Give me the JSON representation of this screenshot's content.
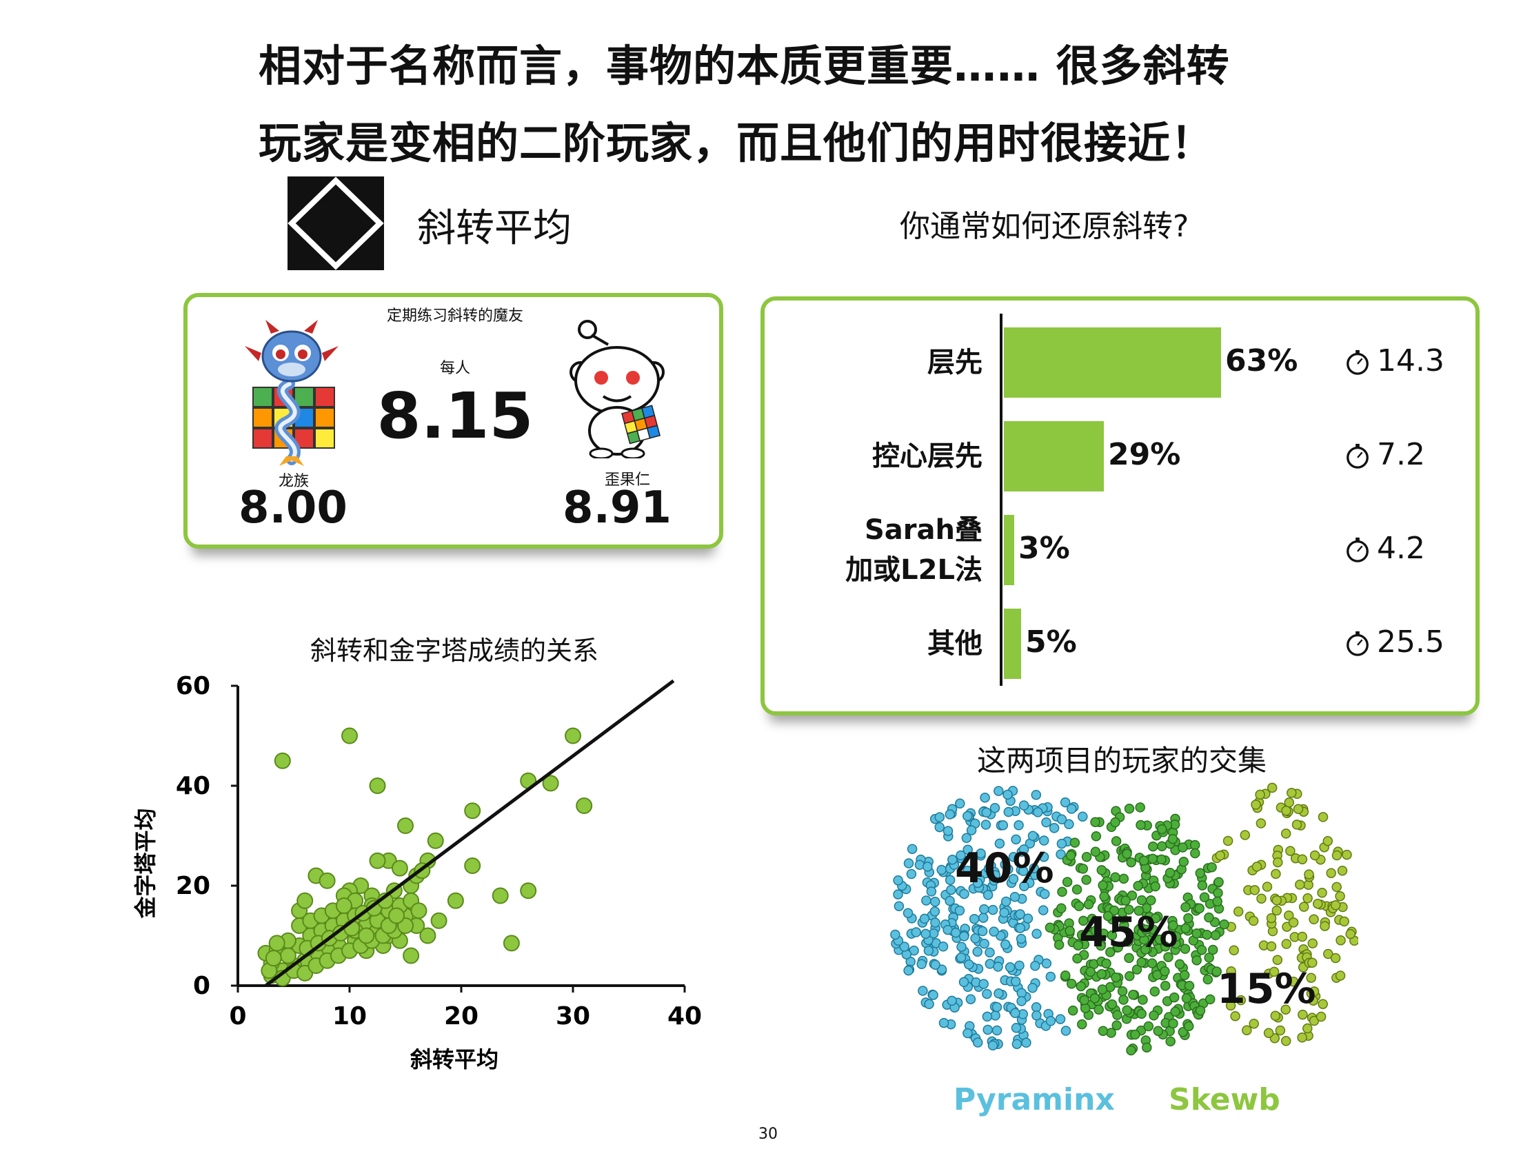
{
  "headline": {
    "line1": "相对于名称而言，事物的本质更重要…… 很多斜转",
    "line2": "玩家是变相的二阶玩家，而且他们的用时很接近！"
  },
  "skewb_title": "斜转平均",
  "survey_title": "你通常如何还原斜转?",
  "regulars": {
    "caption": "定期练习斜转的魔友",
    "overall_caption": "每人",
    "overall_value": "8.15",
    "left_caption": "龙族",
    "left_value": "8.00",
    "right_caption": "歪果仁",
    "right_value": "8.91"
  },
  "methods": [
    {
      "label_lines": [
        "层先"
      ],
      "pct": "63%",
      "value": 63,
      "time": "14.3"
    },
    {
      "label_lines": [
        "控心层先"
      ],
      "pct": "29%",
      "value": 29,
      "time": "7.2"
    },
    {
      "label_lines": [
        "Sarah叠",
        "加或L2L法"
      ],
      "pct": "3%",
      "value": 3,
      "time": "4.2"
    },
    {
      "label_lines": [
        "其他"
      ],
      "pct": "5%",
      "value": 5,
      "time": "25.5"
    }
  ],
  "colors": {
    "green": "#8dc63f",
    "green_dark": "#5a8a1a",
    "cyan": "#5bc0de",
    "cyan_dark": "#1f7a9a",
    "venn_green": "#4caf3a",
    "venn_green_dark": "#2a6e1e",
    "lime": "#a8c83a",
    "lime_dark": "#5f7a12"
  },
  "chart_data": [
    {
      "type": "scatter",
      "title": "斜转和金字塔成绩的关系",
      "xlabel": "斜转平均",
      "ylabel": "金字塔平均",
      "xlim": [
        0,
        40
      ],
      "ylim": [
        0,
        60
      ],
      "xticks": [
        "0",
        "10",
        "20",
        "30",
        "40"
      ],
      "yticks": [
        "0",
        "20",
        "40",
        "60"
      ],
      "trendline": {
        "x": [
          2.5,
          39
        ],
        "y": [
          0,
          61
        ]
      },
      "points": [
        [
          4,
          45
        ],
        [
          10,
          50
        ],
        [
          12.5,
          40
        ],
        [
          15,
          32
        ],
        [
          17.7,
          29
        ],
        [
          21,
          35
        ],
        [
          26,
          41
        ],
        [
          28,
          40.5
        ],
        [
          30,
          50
        ],
        [
          31,
          36
        ],
        [
          13.5,
          25
        ],
        [
          12.5,
          25
        ],
        [
          14.5,
          23.5
        ],
        [
          11,
          20
        ],
        [
          10,
          19
        ],
        [
          9.5,
          18
        ],
        [
          12,
          18
        ],
        [
          14,
          19
        ],
        [
          15.5,
          20
        ],
        [
          16,
          22
        ],
        [
          17,
          25
        ],
        [
          16.5,
          23
        ],
        [
          7,
          22
        ],
        [
          5.5,
          15
        ],
        [
          8,
          21
        ],
        [
          6,
          17
        ],
        [
          10.5,
          17
        ],
        [
          12,
          16
        ],
        [
          13.5,
          15
        ],
        [
          15,
          14
        ],
        [
          16,
          12
        ],
        [
          17,
          10
        ],
        [
          18,
          13
        ],
        [
          19.5,
          17
        ],
        [
          21,
          24
        ],
        [
          23.5,
          18
        ],
        [
          26,
          19
        ],
        [
          24.5,
          8.5
        ],
        [
          15.5,
          6
        ],
        [
          13,
          8
        ],
        [
          11.5,
          7
        ],
        [
          10.5,
          9
        ],
        [
          9,
          8
        ],
        [
          8,
          7
        ],
        [
          7,
          6
        ],
        [
          6,
          5
        ],
        [
          5,
          4
        ],
        [
          4,
          3
        ],
        [
          3,
          4.5
        ],
        [
          2.5,
          6.5
        ],
        [
          3.5,
          7
        ],
        [
          4.5,
          6
        ],
        [
          5.5,
          8
        ],
        [
          6.5,
          10
        ],
        [
          7.5,
          11
        ],
        [
          8.5,
          12
        ],
        [
          9.5,
          13
        ],
        [
          10.5,
          14
        ],
        [
          11.5,
          12
        ],
        [
          12.5,
          11
        ],
        [
          13.5,
          10
        ],
        [
          14.5,
          9
        ],
        [
          3,
          2
        ],
        [
          4,
          1.5
        ],
        [
          5,
          3
        ],
        [
          6,
          2.5
        ],
        [
          7,
          4
        ],
        [
          8,
          5
        ],
        [
          9,
          6
        ],
        [
          10,
          7
        ],
        [
          11,
          8
        ],
        [
          12,
          9
        ],
        [
          13,
          10
        ],
        [
          14,
          11
        ],
        [
          15,
          12
        ],
        [
          5.5,
          12
        ],
        [
          6.5,
          13
        ],
        [
          7.5,
          14
        ],
        [
          8.5,
          15
        ],
        [
          9.5,
          16
        ],
        [
          10.5,
          11
        ],
        [
          11.5,
          10
        ],
        [
          12.5,
          13
        ],
        [
          13.5,
          12
        ],
        [
          14.5,
          16
        ],
        [
          15.5,
          17
        ],
        [
          4.5,
          9
        ],
        [
          3.5,
          8.5
        ],
        [
          2.8,
          3
        ],
        [
          3.2,
          5.5
        ],
        [
          6.2,
          7.5
        ],
        [
          7.2,
          8.5
        ],
        [
          8.2,
          9.5
        ],
        [
          9.2,
          10.5
        ],
        [
          10.2,
          11.5
        ],
        [
          11.2,
          14.5
        ],
        [
          12.2,
          15.5
        ],
        [
          13.2,
          17
        ],
        [
          14.2,
          14
        ],
        [
          16.2,
          15
        ]
      ]
    },
    {
      "type": "bar",
      "title": "你通常如何还原斜转?",
      "categories": [
        "层先",
        "控心层先",
        "Sarah叠加或L2L法",
        "其他"
      ],
      "values": [
        63,
        29,
        3,
        5
      ],
      "value_labels": [
        "63%",
        "29%",
        "3%",
        "5%"
      ],
      "times": [
        14.3,
        7.2,
        4.2,
        25.5
      ],
      "xlim": [
        0,
        100
      ]
    },
    {
      "type": "venn",
      "title": "这两项目的玩家的交集",
      "series": [
        {
          "name": "Pyraminx",
          "pct_label": "40%",
          "value": 40
        },
        {
          "name": "",
          "pct_label": "45%",
          "value": 45
        },
        {
          "name": "Skewb",
          "pct_label": "15%",
          "value": 15
        }
      ]
    }
  ],
  "page_number": "30"
}
